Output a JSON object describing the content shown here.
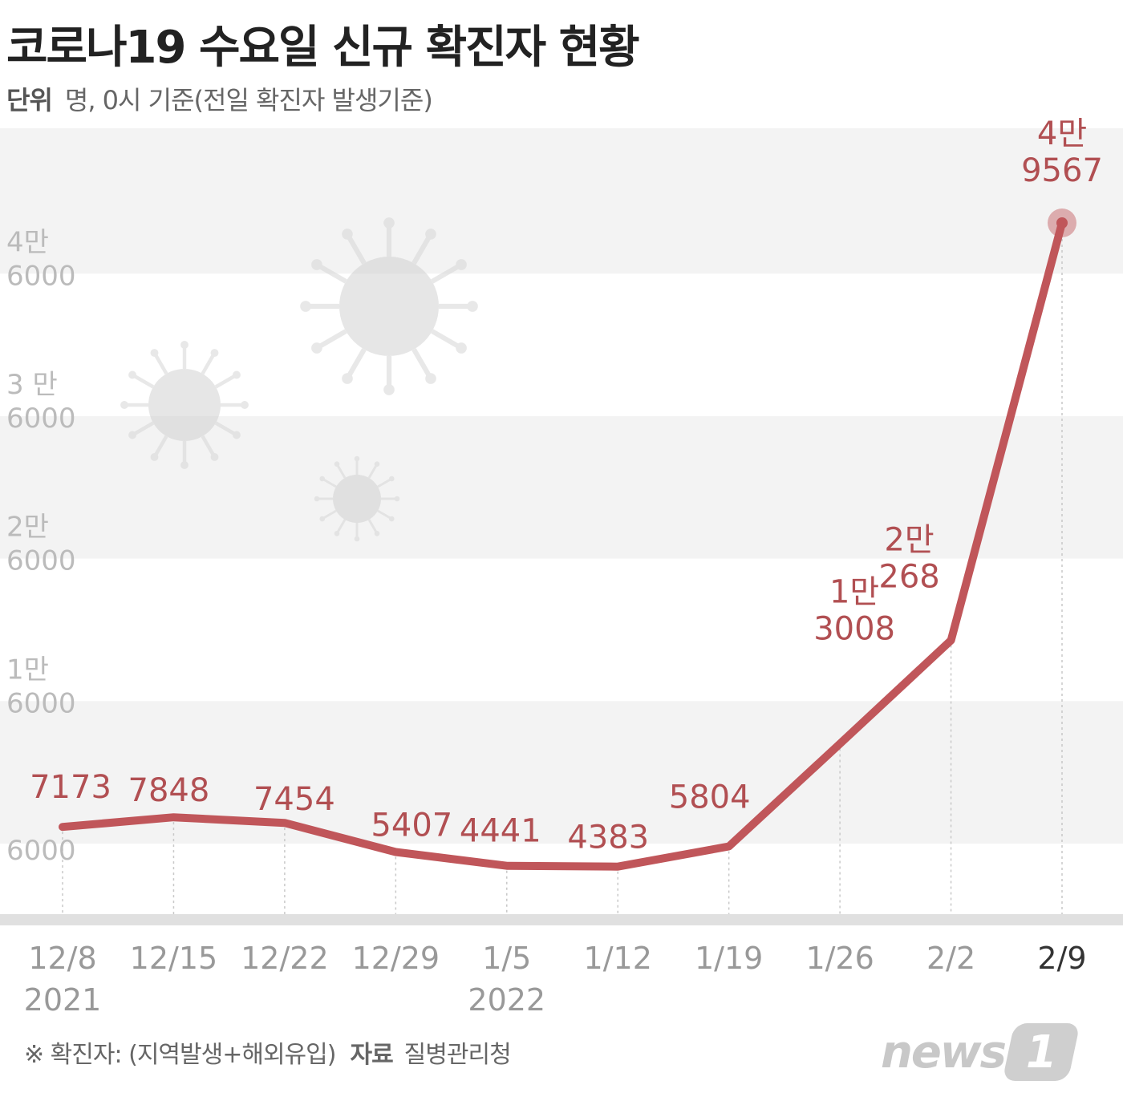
{
  "title": "코로나19 수요일 신규 확진자 현황",
  "unit": {
    "label": "단위",
    "text": "명, 0시 기준(전일 확진자 발생기준)"
  },
  "footer": {
    "note": "※ 확진자: (지역발생+해외유입)",
    "source_label": "자료",
    "source": "질병관리청"
  },
  "logo": {
    "word": "news",
    "number": "1"
  },
  "colors": {
    "line": "#c0565a",
    "label": "#b14f52",
    "band": "#f3f3f3",
    "axis": "#e0e0e0",
    "tick": "#999999",
    "last_tick": "#333333"
  },
  "chart_data": {
    "type": "line",
    "x": [
      "12/8",
      "12/15",
      "12/22",
      "12/29",
      "1/5",
      "1/12",
      "1/19",
      "1/26",
      "2/2",
      "2/9"
    ],
    "year_labels": [
      {
        "index": 0,
        "text": "2021"
      },
      {
        "index": 4,
        "text": "2022"
      }
    ],
    "y": [
      7173,
      7848,
      7454,
      5407,
      4441,
      4383,
      5804,
      13008,
      20268,
      49567
    ],
    "data_labels": [
      [
        "7173"
      ],
      [
        "7848"
      ],
      [
        "7454"
      ],
      [
        "5407"
      ],
      [
        "4441"
      ],
      [
        "4383"
      ],
      [
        "5804"
      ],
      [
        "1만",
        "3008"
      ],
      [
        "2만",
        "268"
      ],
      [
        "4만",
        "9567"
      ]
    ],
    "y_ticks": [
      {
        "value": 6000,
        "lines": [
          "6000"
        ]
      },
      {
        "value": 16000,
        "lines": [
          "1만",
          "6000"
        ]
      },
      {
        "value": 26000,
        "lines": [
          "2만",
          "6000"
        ]
      },
      {
        "value": 36000,
        "lines": [
          "3 만",
          "6000"
        ]
      },
      {
        "value": 46000,
        "lines": [
          "4만",
          "6000"
        ]
      }
    ],
    "ylim": [
      0,
      56000
    ],
    "grid": true,
    "highlight_last": true
  }
}
